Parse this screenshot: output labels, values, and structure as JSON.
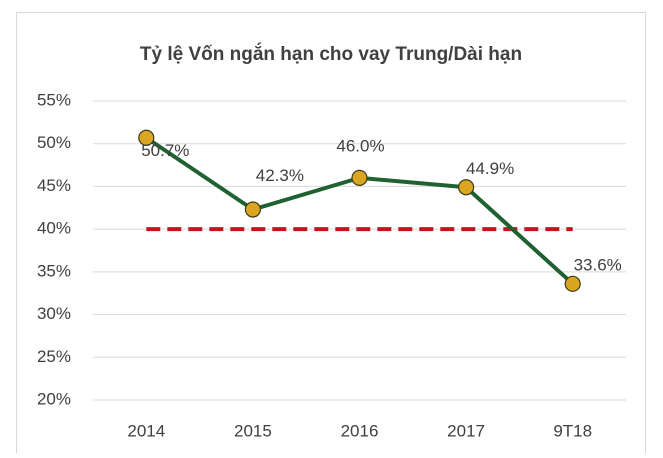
{
  "chart_data": {
    "type": "line",
    "title": "Tỷ lệ Vốn ngắn hạn cho vay Trung/Dài hạn",
    "categories": [
      "2014",
      "2015",
      "2016",
      "2017",
      "9T18"
    ],
    "series": [
      {
        "color": "#1f6130",
        "marker_color": "#daa520",
        "values": [
          50.7,
          42.3,
          46.0,
          44.9,
          33.6
        ],
        "value_labels": [
          "50.7%",
          "42.3%",
          "46.0%",
          "44.9%",
          "33.6%"
        ]
      },
      {
        "color": "#c0161c",
        "dashed": true,
        "values": [
          40,
          40,
          40,
          40,
          40
        ]
      }
    ],
    "ylim": [
      20,
      55
    ],
    "yticks": [
      {
        "value": 20,
        "label": "20%"
      },
      {
        "value": 25,
        "label": "25%"
      },
      {
        "value": 30,
        "label": "30%"
      },
      {
        "value": 35,
        "label": "35%"
      },
      {
        "value": 40,
        "label": "40%"
      },
      {
        "value": 45,
        "label": "45%"
      },
      {
        "value": 50,
        "label": "50%"
      },
      {
        "value": 55,
        "label": "55%"
      }
    ],
    "grid": true
  }
}
